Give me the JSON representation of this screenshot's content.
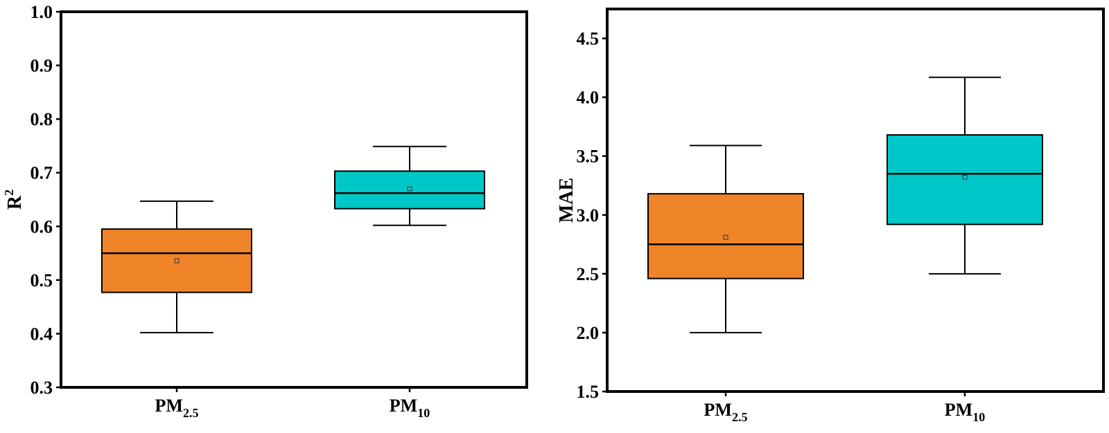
{
  "chart_data": [
    {
      "type": "box",
      "ylabel": "R",
      "ylabel_sup": "2",
      "ylim": [
        0.3,
        1.0
      ],
      "yticks": [
        0.3,
        0.4,
        0.5,
        0.6,
        0.7,
        0.8,
        0.9,
        1.0
      ],
      "categories": [
        {
          "base": "PM",
          "sub": "2.5"
        },
        {
          "base": "PM",
          "sub": "10"
        }
      ],
      "boxes": [
        {
          "min": 0.402,
          "q1": 0.477,
          "median": 0.55,
          "q3": 0.595,
          "max": 0.647,
          "mean": 0.536,
          "color": "#EF8429"
        },
        {
          "min": 0.602,
          "q1": 0.633,
          "median": 0.662,
          "q3": 0.703,
          "max": 0.749,
          "mean": 0.67,
          "color": "#00C8C8"
        }
      ]
    },
    {
      "type": "box",
      "ylabel": "MAE",
      "ylabel_sup": "",
      "ylim": [
        1.5,
        4.75
      ],
      "yticks": [
        1.5,
        2.0,
        2.5,
        3.0,
        3.5,
        4.0,
        4.5
      ],
      "categories": [
        {
          "base": "PM",
          "sub": "2.5"
        },
        {
          "base": "PM",
          "sub": "10"
        }
      ],
      "boxes": [
        {
          "min": 2.0,
          "q1": 2.46,
          "median": 2.75,
          "q3": 3.18,
          "max": 3.59,
          "mean": 2.81,
          "color": "#EF8429"
        },
        {
          "min": 2.5,
          "q1": 2.92,
          "median": 3.35,
          "q3": 3.68,
          "max": 4.17,
          "mean": 3.32,
          "color": "#00C8C8"
        }
      ]
    }
  ]
}
